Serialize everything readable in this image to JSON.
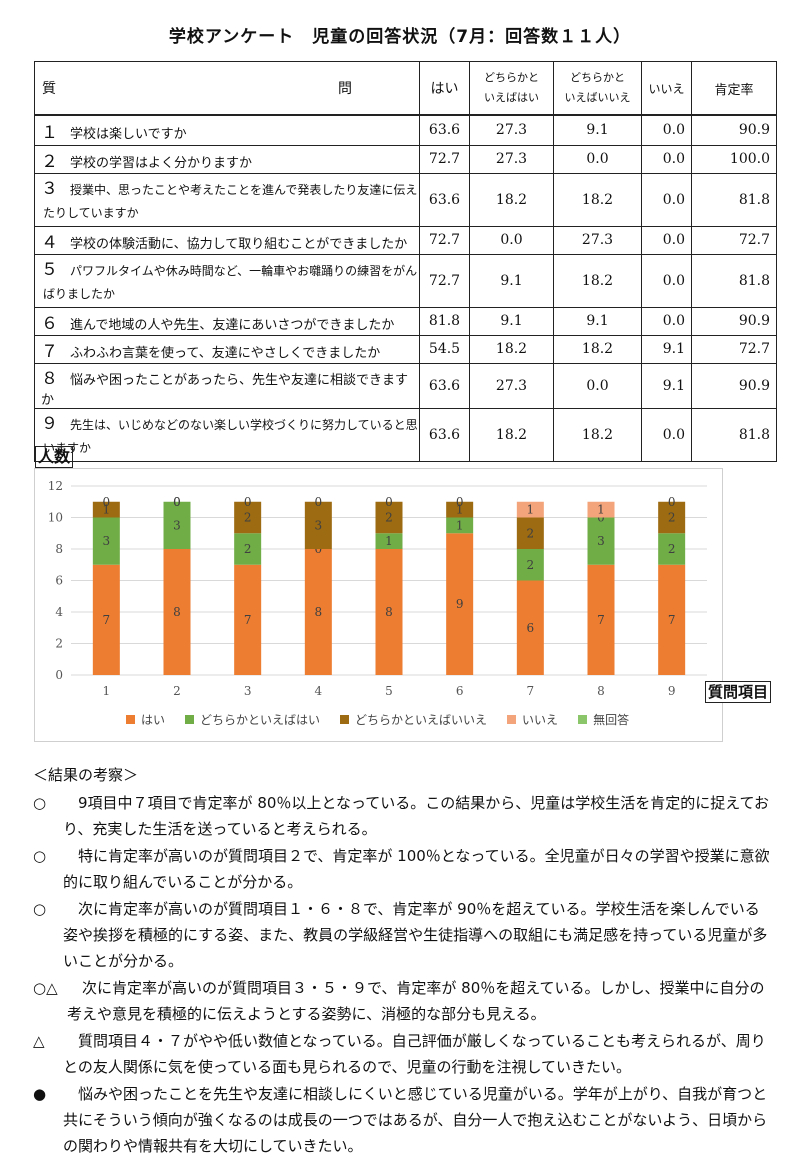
{
  "title": "学校アンケート　児童の回答状況（7月：回答数１１人）",
  "table": {
    "headers": {
      "question": "質　　　問",
      "yes": "はい",
      "rather_yes_1": "どちらかと",
      "rather_yes_2": "いえばはい",
      "rather_no_1": "どちらかと",
      "rather_no_2": "いえばいいえ",
      "no": "いいえ",
      "rate": "肯定率"
    },
    "rows": [
      {
        "num": "１",
        "text": "学校は楽しいですか",
        "line2": "",
        "yes": "63.6",
        "ry": "27.3",
        "rn": "9.1",
        "no": "0.0",
        "rate": "90.9"
      },
      {
        "num": "２",
        "text": "学校の学習はよく分かりますか",
        "line2": "",
        "yes": "72.7",
        "ry": "27.3",
        "rn": "0.0",
        "no": "0.0",
        "rate": "100.0"
      },
      {
        "num": "３",
        "text": "授業中、思ったことや考えたことを進んで発表したり友達に伝え",
        "line2": "たりしていますか",
        "yes": "63.6",
        "ry": "18.2",
        "rn": "18.2",
        "no": "0.0",
        "rate": "81.8"
      },
      {
        "num": "４",
        "text": "学校の体験活動に、協力して取り組むことができましたか",
        "line2": "",
        "yes": "72.7",
        "ry": "0.0",
        "rn": "27.3",
        "no": "0.0",
        "rate": "72.7"
      },
      {
        "num": "５",
        "text": "パワフルタイムや休み時間など、一輪車やお囃踊りの練習をがん",
        "line2": "ばりましたか",
        "yes": "72.7",
        "ry": "9.1",
        "rn": "18.2",
        "no": "0.0",
        "rate": "81.8"
      },
      {
        "num": "６",
        "text": "進んで地域の人や先生、友達にあいさつができましたか",
        "line2": "",
        "yes": "81.8",
        "ry": "9.1",
        "rn": "9.1",
        "no": "0.0",
        "rate": "90.9"
      },
      {
        "num": "７",
        "text": "ふわふわ言葉を使って、友達にやさしくできましたか",
        "line2": "",
        "yes": "54.5",
        "ry": "18.2",
        "rn": "18.2",
        "no": "9.1",
        "rate": "72.7"
      },
      {
        "num": "８",
        "text": "悩みや困ったことがあったら、先生や友達に相談できますか",
        "line2": "",
        "yes": "63.6",
        "ry": "27.3",
        "rn": "0.0",
        "no": "9.1",
        "rate": "90.9"
      },
      {
        "num": "９",
        "text": "先生は、いじめなどのない楽しい学校づくりに努力していると思",
        "line2": "いますか",
        "yes": "63.6",
        "ry": "18.2",
        "rn": "18.2",
        "no": "0.0",
        "rate": "81.8"
      }
    ]
  },
  "chart_data": {
    "type": "bar",
    "stacked": true,
    "ylabel": "人数",
    "xlabel": "質問項目",
    "categories": [
      "1",
      "2",
      "3",
      "4",
      "5",
      "6",
      "7",
      "8",
      "9"
    ],
    "ylim": [
      0,
      12
    ],
    "yticks": [
      "0",
      "2",
      "4",
      "6",
      "8",
      "10",
      "12"
    ],
    "series": [
      {
        "name": "はい",
        "color": "#ED7D31",
        "values": [
          7,
          8,
          7,
          8,
          8,
          9,
          6,
          7,
          7
        ]
      },
      {
        "name": "どちらかといえばはい",
        "color": "#70AD47",
        "values": [
          3,
          3,
          2,
          0,
          1,
          1,
          2,
          3,
          2
        ]
      },
      {
        "name": "どちらかといえばいいえ",
        "color": "#9C6B12",
        "values": [
          1,
          0,
          2,
          3,
          2,
          1,
          2,
          0,
          2
        ]
      },
      {
        "name": "いいえ",
        "color": "#F4A47A",
        "values": [
          0,
          0,
          0,
          0,
          0,
          0,
          1,
          1,
          0
        ]
      },
      {
        "name": "無回答",
        "color": "#8CC66A",
        "values": [
          0,
          0,
          0,
          0,
          0,
          0,
          0,
          0,
          0
        ]
      }
    ],
    "grid": true,
    "legend": "bottom"
  },
  "discussion": {
    "heading": "＜結果の考察＞",
    "items": [
      {
        "mark": "○",
        "text": "　9項目中７項目で肯定率が 80％以上となっている。この結果から、児童は学校生活を肯定的に捉えており、充実した生活を送っていると考えられる。"
      },
      {
        "mark": "○",
        "text": "　特に肯定率が高いのが質問項目２で、肯定率が 100％となっている。全児童が日々の学習や授業に意欲的に取り組んでいることが分かる。"
      },
      {
        "mark": "○",
        "text": "　次に肯定率が高いのが質問項目１・６・８で、肯定率が 90％を超えている。学校生活を楽しんでいる姿や挨拶を積極的にする姿、また、教員の学級経営や生徒指導への取組にも満足感を持っている児童が多いことが分かる。"
      },
      {
        "mark": "○△",
        "text": "　次に肯定率が高いのが質問項目３・５・９で、肯定率が 80％を超えている。しかし、授業中に自分の考えや意見を積極的に伝えようとする姿勢に、消極的な部分も見える。"
      },
      {
        "mark": "△",
        "text": "　質問項目４・７がやや低い数値となっている。自己評価が厳しくなっていることも考えられるが、周りとの友人関係に気を使っている面も見られるので、児童の行動を注視していきたい。"
      },
      {
        "mark": "●",
        "text": "　悩みや困ったことを先生や友達に相談しにくいと感じている児童がいる。学年が上がり、自我が育つと共にそういう傾向が強くなるのは成長の一つではあるが、自分一人で抱え込むことがないよう、日頃からの関わりや情報共有を大切にしていきたい。"
      }
    ]
  }
}
